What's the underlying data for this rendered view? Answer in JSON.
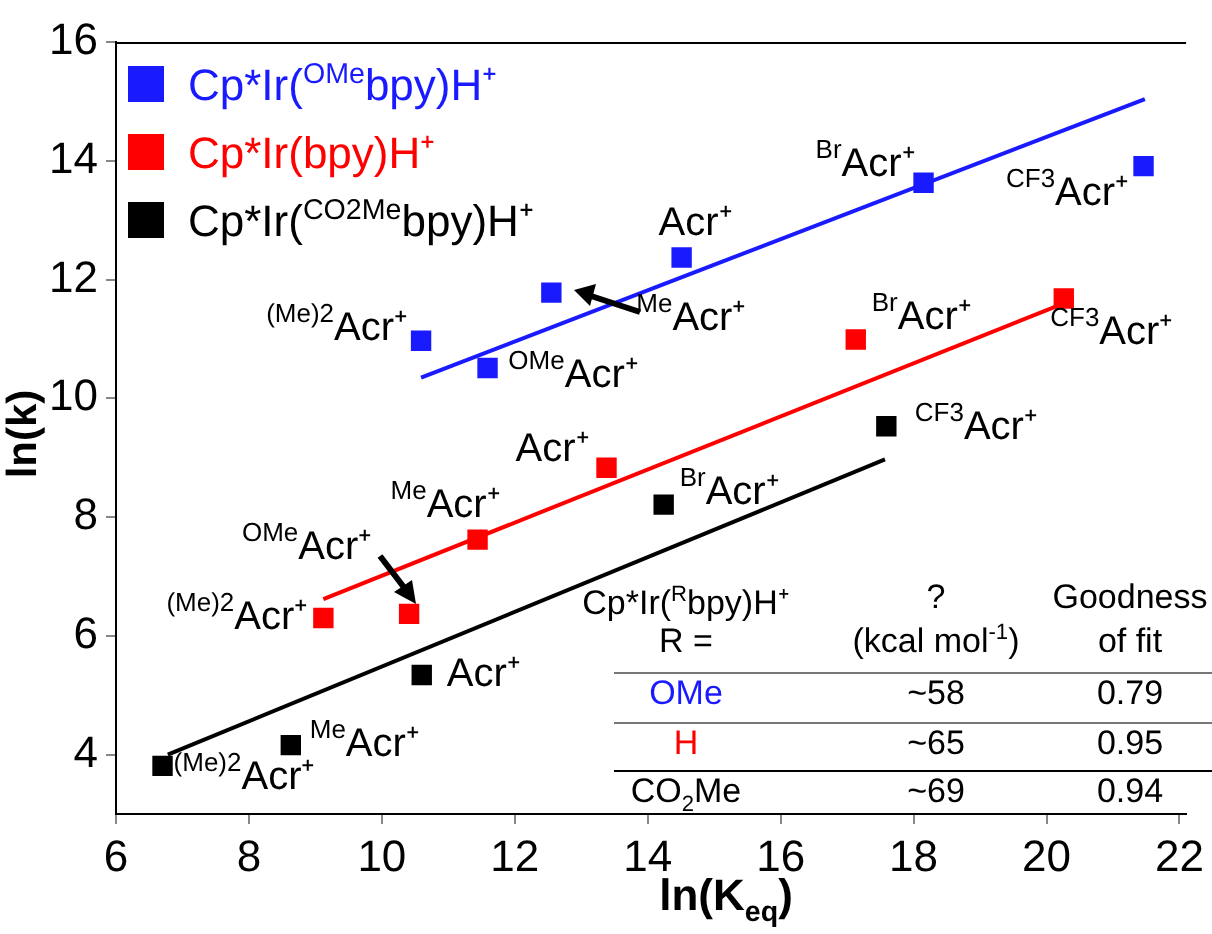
{
  "chart_data": {
    "type": "scatter",
    "xlabel": "ln(K$_{eq}$)",
    "ylabel": "ln(k)",
    "xlim": [
      6,
      22.1
    ],
    "ylim": [
      3,
      16
    ],
    "xticks": [
      6,
      8,
      10,
      12,
      14,
      16,
      18,
      20,
      22
    ],
    "yticks": [
      4,
      6,
      8,
      10,
      12,
      14,
      16
    ],
    "grid": false,
    "legend": "top left",
    "marker": "square",
    "series": [
      {
        "name": "Cp*Ir($^{OMe}$bpy)H⁺",
        "color": "#1a1aff",
        "x": [
          10.59,
          11.59,
          12.55,
          14.51,
          18.15,
          21.46
        ],
        "values": [
          10.97,
          10.51,
          11.78,
          12.37,
          13.63,
          13.91
        ]
      },
      {
        "name": "Cp*Ir(bpy)H⁺",
        "color": "#ff0000",
        "x": [
          9.12,
          10.41,
          11.44,
          13.38,
          17.13,
          20.26
        ],
        "values": [
          6.3,
          6.37,
          7.62,
          8.83,
          10.99,
          11.68
        ]
      },
      {
        "name": "Cp*Ir($^{CO2Me}$bpy)H⁺",
        "color": "#000000",
        "x": [
          6.7,
          8.63,
          10.6,
          14.24,
          17.59
        ],
        "values": [
          3.81,
          4.16,
          5.34,
          8.21,
          9.53
        ]
      },
      {
        "type": "line",
        "marker": "none",
        "color": "#1a1aff",
        "x": [
          10.59,
          21.48
        ],
        "values": [
          10.35,
          15.04
        ]
      },
      {
        "type": "line",
        "marker": "none",
        "color": "#ff0000",
        "x": [
          9.12,
          20.26
        ],
        "values": [
          6.62,
          11.6
        ]
      },
      {
        "type": "line",
        "marker": "none",
        "color": "#000000",
        "x": [
          6.78,
          17.57
        ],
        "values": [
          4.0,
          8.97
        ]
      }
    ],
    "annotations": [
      {
        "text": "$^{(Me)2}$Acr⁺",
        "x": 10.59,
        "y": 10.97
      },
      {
        "text": "$^{OMe}$Acr⁺",
        "x": 11.59,
        "y": 10.51
      },
      {
        "text": "$^{Me}$Acr⁺",
        "x": 12.55,
        "y": 11.78
      },
      {
        "text": "Acr⁺",
        "x": 14.51,
        "y": 12.37
      },
      {
        "text": "$^{Br}$Acr⁺",
        "x": 18.15,
        "y": 13.63
      },
      {
        "text": "$^{CF3}$Acr⁺",
        "x": 21.46,
        "y": 13.91
      },
      {
        "text": "$^{(Me)2}$Acr⁺",
        "x": 9.12,
        "y": 6.3
      },
      {
        "text": "$^{OMe}$Acr⁺",
        "x": 10.41,
        "y": 6.37
      },
      {
        "text": "$^{Me}$Acr⁺",
        "x": 11.44,
        "y": 7.62
      },
      {
        "text": "Acr⁺",
        "x": 13.38,
        "y": 8.83
      },
      {
        "text": "$^{Br}$Acr⁺",
        "x": 17.13,
        "y": 10.99
      },
      {
        "text": "$^{CF3}$Acr⁺",
        "x": 20.26,
        "y": 11.68
      },
      {
        "text": "$^{(Me)2}$Acr⁺",
        "x": 6.7,
        "y": 3.81
      },
      {
        "text": "$^{Me}$Acr⁺",
        "x": 8.63,
        "y": 4.16
      },
      {
        "text": "Acr⁺",
        "x": 10.6,
        "y": 5.34
      },
      {
        "text": "$^{Br}$Acr⁺",
        "x": 14.24,
        "y": 8.21
      },
      {
        "text": "$^{CF3}$Acr⁺",
        "x": 17.59,
        "y": 9.53
      },
      "Cp*Ir($^{R}$bpy)H⁺",
      "?",
      "Goodness",
      "R =",
      "(kcal mol$^{-1}$)",
      "of fit",
      "OMe",
      "~58",
      "0.79",
      "H",
      "~65",
      "0.95",
      "CO$_{2}$Me",
      "~69",
      "0.94"
    ]
  }
}
